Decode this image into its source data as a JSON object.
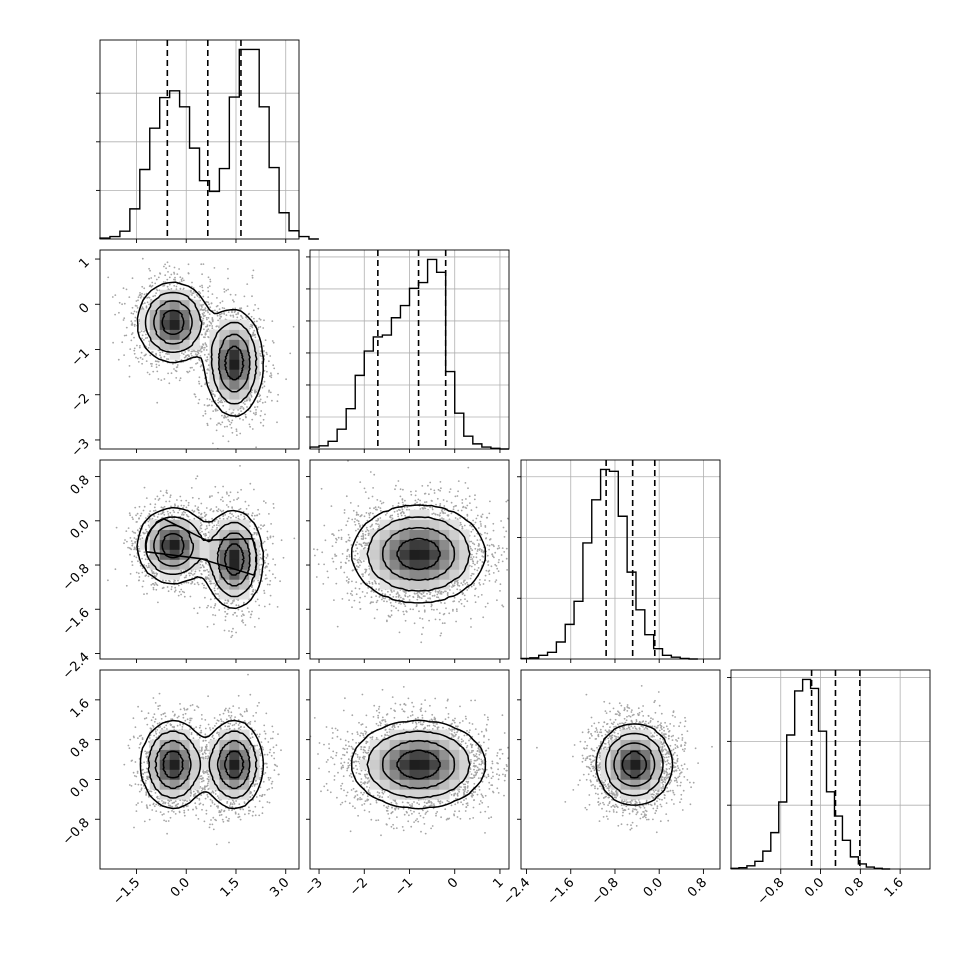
{
  "chart_data": {
    "type": "scatter",
    "subtype": "corner",
    "grid": true,
    "histograms": [
      {
        "name": "",
        "xlim": [
          -2.6,
          3.4
        ],
        "bin_edges_start": -2.6,
        "bin_width": 0.3,
        "counts": [
          2,
          5,
          16,
          62,
          143,
          228,
          291,
          305,
          272,
          187,
          120,
          98,
          145,
          292,
          390,
          390,
          272,
          147,
          54,
          17,
          5,
          0
        ],
        "quantiles": [
          -0.57,
          0.65,
          1.65
        ],
        "yticks": [
          100,
          200,
          300
        ]
      },
      {
        "name": "",
        "xlim": [
          -3.2,
          1.2
        ],
        "bin_edges_start": -3.2,
        "bin_width": 0.2,
        "counts": [
          3,
          5,
          12,
          31,
          63,
          115,
          153,
          175,
          178,
          205,
          224,
          251,
          260,
          296,
          276,
          121,
          56,
          20,
          8,
          3,
          1,
          0
        ],
        "quantiles": [
          -1.7,
          -0.8,
          -0.2
        ],
        "yticks": [
          50,
          100,
          150,
          200,
          250,
          300
        ]
      },
      {
        "name": "",
        "xlim": [
          -2.5,
          1.1
        ],
        "bin_edges_start": -2.5,
        "bin_width": 0.16,
        "counts": [
          1,
          2,
          6,
          11,
          28,
          57,
          95,
          191,
          262,
          312,
          309,
          235,
          143,
          81,
          40,
          17,
          6,
          3,
          1,
          0
        ],
        "quantiles": [
          -0.96,
          -0.48,
          -0.08
        ],
        "yticks": [
          100,
          200,
          300
        ]
      },
      {
        "name": "",
        "xlim": [
          -1.8,
          2.2
        ],
        "bin_edges_start": -1.8,
        "bin_width": 0.16,
        "counts": [
          1,
          2,
          5,
          12,
          28,
          57,
          105,
          210,
          279,
          297,
          283,
          216,
          121,
          83,
          45,
          19,
          8,
          3,
          1,
          0
        ],
        "quantiles": [
          -0.18,
          0.3,
          0.79
        ],
        "yticks": [
          100,
          200,
          300
        ]
      }
    ],
    "panels": [
      {
        "row": 1,
        "col": 0,
        "xlim": [
          -2.6,
          3.4
        ],
        "ylim": [
          -3.2,
          1.2
        ],
        "modes": [
          {
            "x": -0.4,
            "y": -0.4,
            "sx": 0.55,
            "sy": 0.45
          },
          {
            "x": 1.45,
            "y": -1.3,
            "sx": 0.45,
            "sy": 0.6
          }
        ]
      },
      {
        "row": 2,
        "col": 0,
        "xlim": [
          -2.6,
          3.4
        ],
        "ylim": [
          -2.5,
          1.1
        ],
        "modes": [
          {
            "x": -0.4,
            "y": -0.45,
            "sx": 0.55,
            "sy": 0.35
          },
          {
            "x": 1.45,
            "y": -0.7,
            "sx": 0.45,
            "sy": 0.45
          }
        ]
      },
      {
        "row": 2,
        "col": 1,
        "xlim": [
          -3.2,
          1.2
        ],
        "ylim": [
          -2.5,
          1.1
        ],
        "modes": [
          {
            "x": -0.8,
            "y": -0.6,
            "sx": 0.75,
            "sy": 0.45
          }
        ]
      },
      {
        "row": 3,
        "col": 0,
        "xlim": [
          -2.6,
          3.4
        ],
        "ylim": [
          -1.8,
          2.2
        ],
        "modes": [
          {
            "x": -0.4,
            "y": 0.3,
            "sx": 0.5,
            "sy": 0.45
          },
          {
            "x": 1.45,
            "y": 0.3,
            "sx": 0.45,
            "sy": 0.45
          }
        ]
      },
      {
        "row": 3,
        "col": 1,
        "xlim": [
          -3.2,
          1.2
        ],
        "ylim": [
          -1.8,
          2.2
        ],
        "modes": [
          {
            "x": -0.8,
            "y": 0.3,
            "sx": 0.75,
            "sy": 0.45
          }
        ]
      },
      {
        "row": 3,
        "col": 2,
        "xlim": [
          -2.5,
          1.1
        ],
        "ylim": [
          -1.8,
          2.2
        ],
        "modes": [
          {
            "x": -0.45,
            "y": 0.3,
            "sx": 0.35,
            "sy": 0.42
          }
        ]
      }
    ],
    "contour_levels": [
      0.39,
      0.86,
      1.39,
      1.92
    ],
    "axes": {
      "x_tick_labels": [
        [
          "−1.5",
          "0.0",
          "1.5",
          "3.0"
        ],
        [
          "−3",
          "−2",
          "−1",
          "0",
          "1"
        ],
        [
          "−2.4",
          "−1.6",
          "−0.8",
          "0.0",
          "0.8"
        ],
        [
          "−0.8",
          "0.0",
          "0.8",
          "1.6"
        ]
      ],
      "x_tick_values": [
        [
          -1.5,
          0.0,
          1.5,
          3.0
        ],
        [
          -3,
          -2,
          -1,
          0,
          1
        ],
        [
          -2.4,
          -1.6,
          -0.8,
          0.0,
          0.8
        ],
        [
          -0.8,
          0.0,
          0.8,
          1.6
        ]
      ],
      "y_tick_labels": [
        [],
        [
          "1",
          "0",
          "−1",
          "−2",
          "−3"
        ],
        [
          "0.8",
          "0.0",
          "−0.8",
          "−1.6",
          "−2.4"
        ],
        [
          "1.6",
          "0.8",
          "0.0",
          "−0.8"
        ]
      ],
      "y_tick_values": [
        [],
        [
          1,
          0,
          -1,
          -2,
          -3
        ],
        [
          0.8,
          0.0,
          -0.8,
          -1.6,
          -2.4
        ],
        [
          1.6,
          0.8,
          0.0,
          -0.8
        ]
      ]
    }
  }
}
